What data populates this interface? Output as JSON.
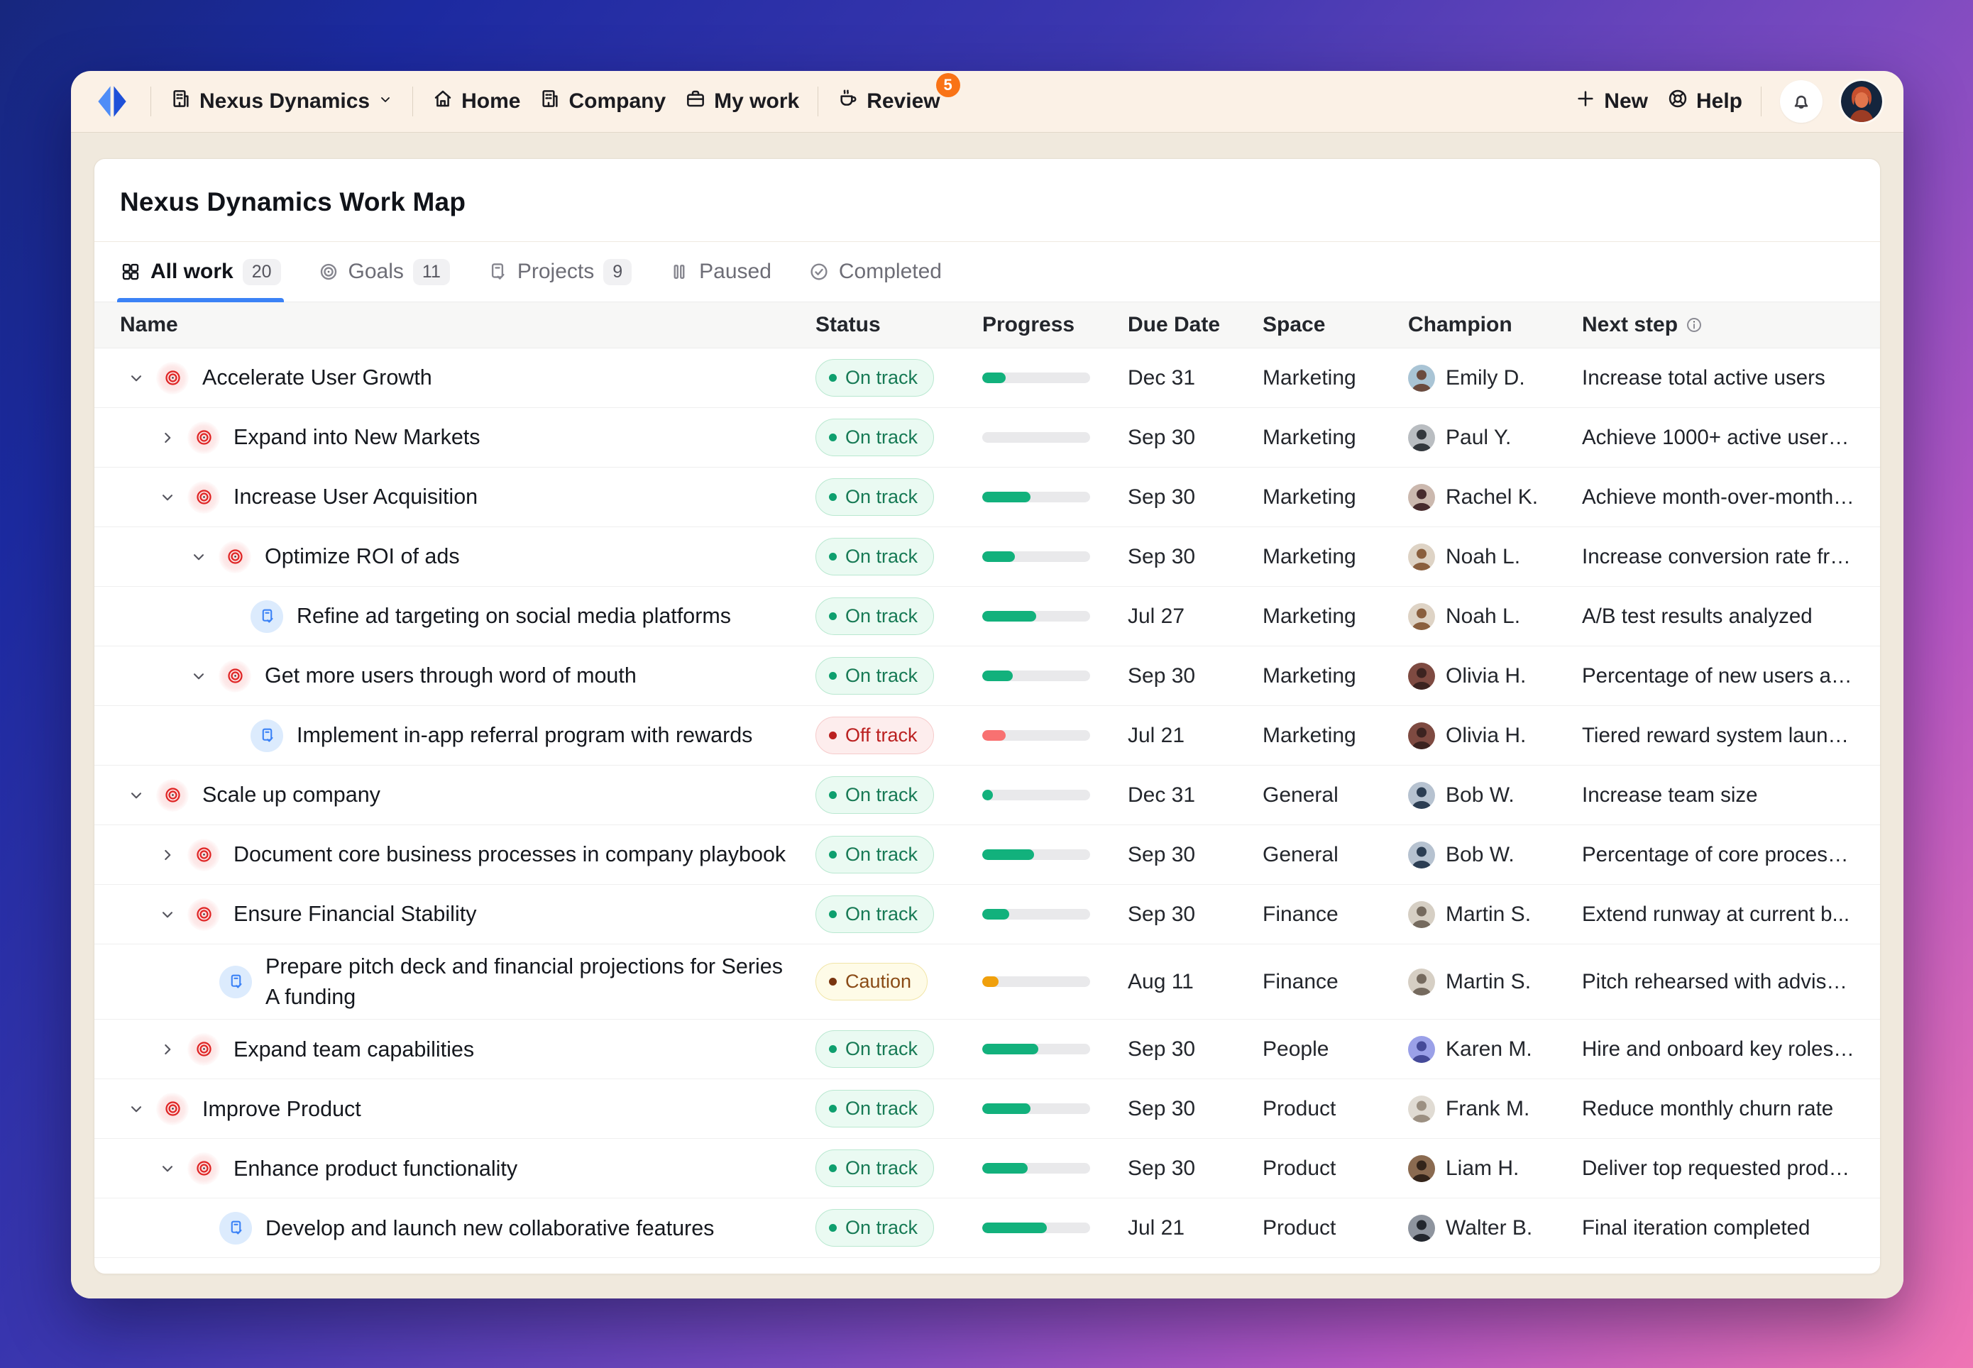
{
  "nav": {
    "workspace": {
      "label": "Nexus Dynamics",
      "icon": "building"
    },
    "items": [
      {
        "label": "Home",
        "icon": "home"
      },
      {
        "label": "Company",
        "icon": "building"
      },
      {
        "label": "My work",
        "icon": "briefcase"
      }
    ],
    "review": {
      "label": "Review",
      "icon": "coffee",
      "badge": "5"
    },
    "new_label": "New",
    "help_label": "Help"
  },
  "page": {
    "title": "Nexus Dynamics Work Map"
  },
  "tabs": [
    {
      "label": "All work",
      "count": "20",
      "icon": "grid",
      "active": true
    },
    {
      "label": "Goals",
      "count": "11",
      "icon": "target",
      "active": false
    },
    {
      "label": "Projects",
      "count": "9",
      "icon": "doc",
      "active": false
    },
    {
      "label": "Paused",
      "count": "",
      "icon": "pause",
      "active": false
    },
    {
      "label": "Completed",
      "count": "",
      "icon": "check-circle",
      "active": false
    }
  ],
  "table": {
    "columns": [
      "Name",
      "Status",
      "Progress",
      "Due Date",
      "Space",
      "Champion",
      "Next step"
    ],
    "rows": [
      {
        "level": 0,
        "kind": "goal",
        "chevron": "down",
        "name": "Accelerate User Growth",
        "status": {
          "label": "On track",
          "variant": "on-track"
        },
        "progress": {
          "pct": 22,
          "color": "green"
        },
        "due": "Dec 31",
        "space": "Marketing",
        "champion": "Emily D.",
        "next": "Increase total active users"
      },
      {
        "level": 1,
        "kind": "goal",
        "chevron": "right",
        "name": "Expand into New Markets",
        "status": {
          "label": "On track",
          "variant": "on-track"
        },
        "progress": {
          "pct": 0,
          "color": "green"
        },
        "due": "Sep 30",
        "space": "Marketing",
        "champion": "Paul Y.",
        "next": "Achieve 1000+ active users..."
      },
      {
        "level": 1,
        "kind": "goal",
        "chevron": "down",
        "name": "Increase User Acquisition",
        "status": {
          "label": "On track",
          "variant": "on-track"
        },
        "progress": {
          "pct": 45,
          "color": "green"
        },
        "due": "Sep 30",
        "space": "Marketing",
        "champion": "Rachel K.",
        "next": "Achieve month-over-month ..."
      },
      {
        "level": 2,
        "kind": "goal",
        "chevron": "down",
        "name": "Optimize ROI of ads",
        "status": {
          "label": "On track",
          "variant": "on-track"
        },
        "progress": {
          "pct": 30,
          "color": "green"
        },
        "due": "Sep 30",
        "space": "Marketing",
        "champion": "Noah L.",
        "next": "Increase conversion rate fro..."
      },
      {
        "level": 3,
        "kind": "project",
        "chevron": null,
        "name": "Refine ad targeting on social media platforms",
        "status": {
          "label": "On track",
          "variant": "on-track"
        },
        "progress": {
          "pct": 50,
          "color": "green"
        },
        "due": "Jul 27",
        "space": "Marketing",
        "champion": "Noah L.",
        "next": "A/B test results analyzed"
      },
      {
        "level": 2,
        "kind": "goal",
        "chevron": "down",
        "name": "Get more users through word of mouth",
        "status": {
          "label": "On track",
          "variant": "on-track"
        },
        "progress": {
          "pct": 28,
          "color": "green"
        },
        "due": "Sep 30",
        "space": "Marketing",
        "champion": "Olivia H.",
        "next": "Percentage of new users ac..."
      },
      {
        "level": 3,
        "kind": "project",
        "chevron": null,
        "name": "Implement in-app referral program with rewards",
        "status": {
          "label": "Off track",
          "variant": "off-track"
        },
        "progress": {
          "pct": 22,
          "color": "red"
        },
        "due": "Jul 21",
        "space": "Marketing",
        "champion": "Olivia H.",
        "next": "Tiered reward system launc..."
      },
      {
        "level": 0,
        "kind": "goal",
        "chevron": "down",
        "name": "Scale up company",
        "status": {
          "label": "On track",
          "variant": "on-track"
        },
        "progress": {
          "pct": 10,
          "color": "green"
        },
        "due": "Dec 31",
        "space": "General",
        "champion": "Bob W.",
        "next": "Increase team size"
      },
      {
        "level": 1,
        "kind": "goal",
        "chevron": "right",
        "name": "Document core business processes in company playbook",
        "status": {
          "label": "On track",
          "variant": "on-track"
        },
        "progress": {
          "pct": 48,
          "color": "green"
        },
        "due": "Sep 30",
        "space": "General",
        "champion": "Bob W.",
        "next": "Percentage of core process..."
      },
      {
        "level": 1,
        "kind": "goal",
        "chevron": "down",
        "name": "Ensure Financial Stability",
        "status": {
          "label": "On track",
          "variant": "on-track"
        },
        "progress": {
          "pct": 25,
          "color": "green"
        },
        "due": "Sep 30",
        "space": "Finance",
        "champion": "Martin S.",
        "next": "Extend runway at current b..."
      },
      {
        "level": 2,
        "kind": "project",
        "chevron": null,
        "name": "Prepare pitch deck and financial projections for Series A funding",
        "status": {
          "label": "Caution",
          "variant": "caution"
        },
        "progress": {
          "pct": 15,
          "color": "orange"
        },
        "due": "Aug 11",
        "space": "Finance",
        "champion": "Martin S.",
        "next": "Pitch rehearsed with advisors"
      },
      {
        "level": 1,
        "kind": "goal",
        "chevron": "right",
        "name": "Expand team capabilities",
        "status": {
          "label": "On track",
          "variant": "on-track"
        },
        "progress": {
          "pct": 52,
          "color": "green"
        },
        "due": "Sep 30",
        "space": "People",
        "champion": "Karen M.",
        "next": "Hire and onboard key roles i..."
      },
      {
        "level": 0,
        "kind": "goal",
        "chevron": "down",
        "name": "Improve Product",
        "status": {
          "label": "On track",
          "variant": "on-track"
        },
        "progress": {
          "pct": 45,
          "color": "green"
        },
        "due": "Sep 30",
        "space": "Product",
        "champion": "Frank M.",
        "next": "Reduce monthly churn rate"
      },
      {
        "level": 1,
        "kind": "goal",
        "chevron": "down",
        "name": "Enhance product functionality",
        "status": {
          "label": "On track",
          "variant": "on-track"
        },
        "progress": {
          "pct": 42,
          "color": "green"
        },
        "due": "Sep 30",
        "space": "Product",
        "champion": "Liam H.",
        "next": "Deliver top requested produ..."
      },
      {
        "level": 2,
        "kind": "project",
        "chevron": null,
        "name": "Develop and launch new collaborative features",
        "status": {
          "label": "On track",
          "variant": "on-track"
        },
        "progress": {
          "pct": 60,
          "color": "green"
        },
        "due": "Jul 21",
        "space": "Product",
        "champion": "Walter B.",
        "next": "Final iteration completed"
      }
    ]
  },
  "avatar_colors": {
    "Emily D.": [
      "#a9c4d5",
      "#6b4b3f"
    ],
    "Paul Y.": [
      "#b9bdc1",
      "#33383d"
    ],
    "Rachel K.": [
      "#cbb8ae",
      "#472b2d"
    ],
    "Noah L.": [
      "#ded3c5",
      "#8a5f3e"
    ],
    "Olivia H.": [
      "#7e4a41",
      "#3c2320"
    ],
    "Bob W.": [
      "#b6c2d0",
      "#2c3e53"
    ],
    "Martin S.": [
      "#d6cfc4",
      "#756a5e"
    ],
    "Karen M.": [
      "#9aa0e8",
      "#454a99"
    ],
    "Frank M.": [
      "#e0dbd3",
      "#9c9082"
    ],
    "Liam H.": [
      "#8a6a50",
      "#33241a"
    ],
    "Walter B.": [
      "#8e949e",
      "#23272e"
    ]
  },
  "colors": {
    "accent": "#3b82f6",
    "on_track_text": "#177a55",
    "off_track_text": "#bb2020",
    "caution_text": "#8a4b16",
    "progress_green": "#12b17c",
    "progress_red": "#f87171",
    "progress_orange": "#f0a00c",
    "review_badge": "#f97316"
  }
}
